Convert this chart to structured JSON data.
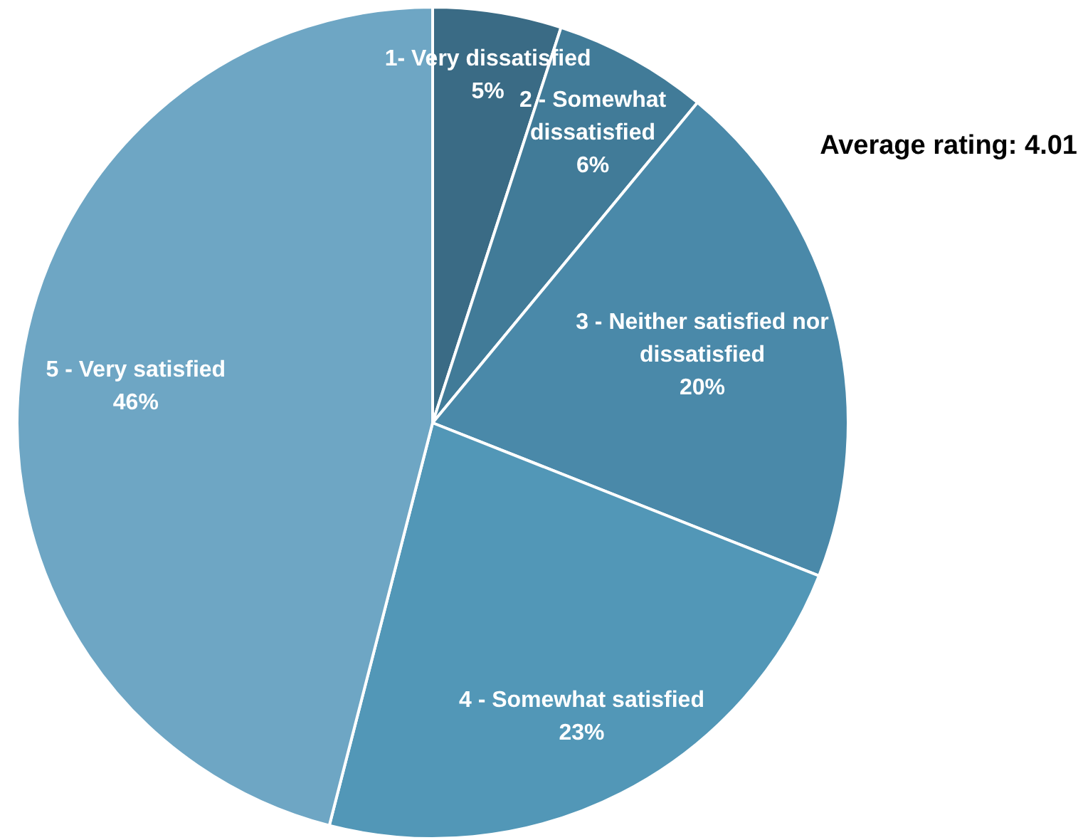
{
  "chart_data": {
    "type": "pie",
    "categories": [
      "1- Very dissatisfied",
      "2 - Somewhat dissatisfied",
      "3 - Neither satisfied nor dissatisfied",
      "4 - Somewhat satisfied",
      "5 - Very satisfied"
    ],
    "values": [
      5,
      6,
      20,
      23,
      46
    ],
    "value_labels": [
      "5%",
      "6%",
      "20%",
      "23%",
      "46%"
    ],
    "colors": [
      "#3a6b85",
      "#417b98",
      "#4a89a9",
      "#5297b7",
      "#6ea6c4"
    ],
    "annotations": [
      "Average rating: 4.01"
    ],
    "legend": false
  }
}
